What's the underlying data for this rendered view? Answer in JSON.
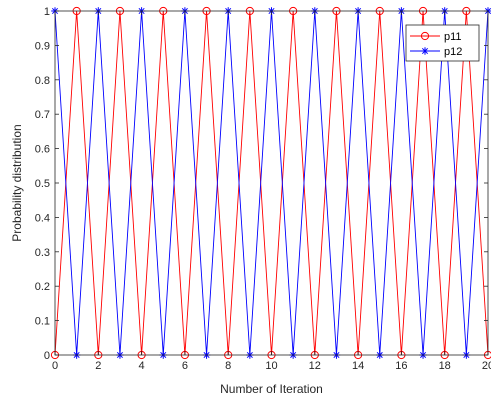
{
  "chart_data": {
    "type": "line",
    "xlabel": "Number of Iteration",
    "ylabel": "Probability distribution",
    "xlim": [
      0,
      20
    ],
    "ylim": [
      0,
      1
    ],
    "x_ticks": [
      0,
      2,
      4,
      6,
      8,
      10,
      12,
      14,
      16,
      18,
      20
    ],
    "x_tick_labels": [
      "0",
      "2",
      "4",
      "6",
      "8",
      "10",
      "12",
      "14",
      "16",
      "18",
      "20"
    ],
    "y_ticks": [
      0,
      0.1,
      0.2,
      0.3,
      0.4,
      0.5,
      0.6,
      0.7,
      0.8,
      0.9,
      1
    ],
    "y_tick_labels": [
      "0",
      "0.1",
      "0.2",
      "0.3",
      "0.4",
      "0.5",
      "0.6",
      "0.7",
      "0.8",
      "0.9",
      "1"
    ],
    "grid": false,
    "legend_position": "top-right",
    "x": [
      0,
      1,
      2,
      3,
      4,
      5,
      6,
      7,
      8,
      9,
      10,
      11,
      12,
      13,
      14,
      15,
      16,
      17,
      18,
      19,
      20
    ],
    "series": [
      {
        "name": "p11",
        "color": "#ff0000",
        "marker": "circle",
        "values": [
          0,
          1,
          0,
          1,
          0,
          1,
          0,
          1,
          0,
          1,
          0,
          1,
          0,
          1,
          0,
          1,
          0,
          1,
          0,
          1,
          0
        ]
      },
      {
        "name": "p12",
        "color": "#0000ff",
        "marker": "asterisk",
        "values": [
          1,
          0,
          1,
          0,
          1,
          0,
          1,
          0,
          1,
          0,
          1,
          0,
          1,
          0,
          1,
          0,
          1,
          0,
          1,
          0,
          1
        ]
      }
    ]
  }
}
